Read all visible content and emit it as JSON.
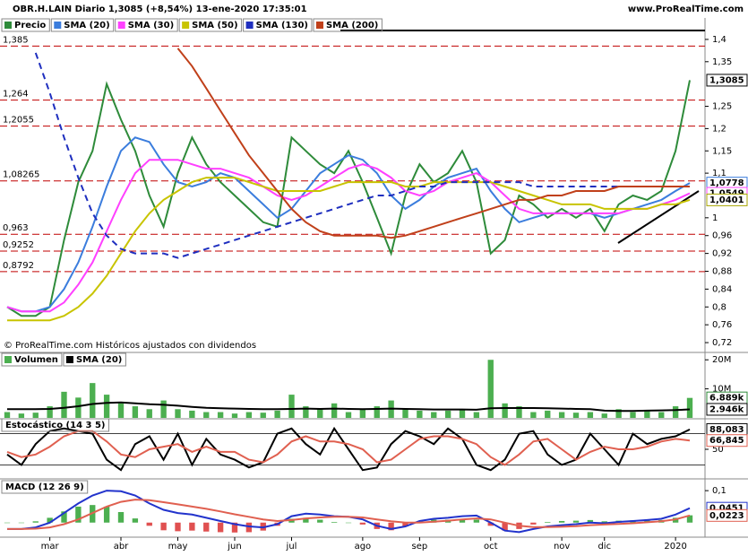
{
  "chart_data": [
    {
      "type": "line",
      "title": "OBR.H.LAIN Diario 1,3085 (+8,54%) 13-ene-2020 17:35:01",
      "source": "www.ProRealTime.com",
      "note": "© ProRealTime.com Históricos ajustados con dividendos",
      "categories": [
        null,
        null,
        null,
        "mar",
        null,
        null,
        null,
        null,
        "abr",
        null,
        null,
        null,
        "may",
        null,
        null,
        null,
        "jun",
        null,
        null,
        null,
        "jul",
        null,
        null,
        null,
        null,
        "ago",
        null,
        null,
        null,
        "sep",
        null,
        null,
        null,
        null,
        "oct",
        null,
        null,
        null,
        null,
        "nov",
        null,
        null,
        "dic",
        null,
        null,
        null,
        null,
        "2020",
        null
      ],
      "ylim": [
        0.7,
        1.42
      ],
      "yticks": [
        {
          "value": 1.4,
          "label": "1,4"
        },
        {
          "value": 1.35,
          "label": "1,35"
        },
        {
          "value": 1.25,
          "label": "1,25"
        },
        {
          "value": 1.2,
          "label": "1,2"
        },
        {
          "value": 1.15,
          "label": "1,15"
        },
        {
          "value": 1.1,
          "label": "1,1"
        },
        1,
        {
          "value": 0.96,
          "label": "0,96"
        },
        {
          "value": 0.92,
          "label": "0,92"
        },
        {
          "value": 0.88,
          "label": "0,88"
        },
        {
          "value": 0.84,
          "label": "0,84"
        },
        {
          "value": 0.8,
          "label": "0,8"
        },
        {
          "value": 0.76,
          "label": "0,76"
        },
        {
          "value": 0.72,
          "label": "0,72"
        }
      ],
      "levels": [
        {
          "value": 1.385,
          "label": "1,385"
        },
        {
          "value": 1.264,
          "label": "1,264"
        },
        {
          "value": 1.2055,
          "label": "1,2055"
        },
        {
          "value": 1.08265,
          "label": "1,08265"
        },
        {
          "value": 0.963,
          "label": "0,963"
        },
        {
          "value": 0.9252,
          "label": "0,9252"
        },
        {
          "value": 0.8792,
          "label": "0,8792"
        }
      ],
      "series": [
        {
          "name": "Precio",
          "color": "#2e8b3a",
          "values": [
            0.8,
            0.78,
            0.78,
            0.8,
            0.95,
            1.08,
            1.15,
            1.3,
            1.22,
            1.15,
            1.05,
            0.98,
            1.1,
            1.18,
            1.12,
            1.08,
            1.05,
            1.02,
            0.99,
            0.98,
            1.18,
            1.15,
            1.12,
            1.1,
            1.15,
            1.08,
            1.0,
            0.92,
            1.05,
            1.12,
            1.08,
            1.1,
            1.15,
            1.08,
            0.92,
            0.95,
            1.05,
            1.03,
            1.0,
            1.02,
            1.0,
            1.02,
            0.97,
            1.03,
            1.05,
            1.04,
            1.06,
            1.15,
            1.3085
          ]
        },
        {
          "name": "SMA (20)",
          "color": "#3b7ddd",
          "values": [
            0.8,
            0.79,
            0.79,
            0.8,
            0.84,
            0.9,
            0.98,
            1.07,
            1.15,
            1.18,
            1.17,
            1.12,
            1.08,
            1.07,
            1.08,
            1.1,
            1.09,
            1.06,
            1.03,
            1.0,
            1.02,
            1.06,
            1.1,
            1.12,
            1.14,
            1.13,
            1.1,
            1.05,
            1.02,
            1.04,
            1.07,
            1.09,
            1.1,
            1.11,
            1.06,
            1.02,
            0.99,
            1.0,
            1.01,
            1.01,
            1.01,
            1.01,
            1.0,
            1.01,
            1.02,
            1.03,
            1.04,
            1.06,
            1.0778
          ]
        },
        {
          "name": "SMA (30)",
          "color": "#ff40ff",
          "values": [
            0.8,
            0.79,
            0.79,
            0.79,
            0.81,
            0.85,
            0.9,
            0.97,
            1.04,
            1.1,
            1.13,
            1.13,
            1.13,
            1.12,
            1.11,
            1.11,
            1.1,
            1.09,
            1.07,
            1.05,
            1.04,
            1.05,
            1.07,
            1.09,
            1.11,
            1.12,
            1.11,
            1.09,
            1.06,
            1.05,
            1.06,
            1.08,
            1.09,
            1.1,
            1.08,
            1.05,
            1.02,
            1.01,
            1.01,
            1.01,
            1.01,
            1.01,
            1.01,
            1.01,
            1.02,
            1.02,
            1.03,
            1.04,
            1.0549
          ]
        },
        {
          "name": "SMA (50)",
          "color": "#c8c400",
          "values": [
            0.77,
            0.77,
            0.77,
            0.77,
            0.78,
            0.8,
            0.83,
            0.87,
            0.92,
            0.97,
            1.01,
            1.04,
            1.06,
            1.08,
            1.09,
            1.09,
            1.09,
            1.08,
            1.07,
            1.06,
            1.06,
            1.06,
            1.06,
            1.07,
            1.08,
            1.08,
            1.08,
            1.08,
            1.07,
            1.07,
            1.08,
            1.08,
            1.08,
            1.08,
            1.08,
            1.07,
            1.06,
            1.05,
            1.04,
            1.03,
            1.03,
            1.03,
            1.02,
            1.02,
            1.02,
            1.02,
            1.03,
            1.03,
            1.0401
          ]
        },
        {
          "name": "SMA (130)",
          "color": "#1f2fbf",
          "dashed": true,
          "values": [
            null,
            null,
            1.37,
            1.28,
            1.18,
            1.09,
            1.01,
            0.96,
            0.93,
            0.92,
            0.92,
            0.92,
            0.91,
            0.92,
            0.93,
            0.94,
            0.95,
            0.96,
            0.97,
            0.98,
            0.99,
            1.0,
            1.01,
            1.02,
            1.03,
            1.04,
            1.05,
            1.05,
            1.06,
            1.07,
            1.07,
            1.08,
            1.08,
            1.08,
            1.08,
            1.08,
            1.08,
            1.07,
            1.07,
            1.07,
            1.07,
            1.07,
            1.07,
            1.07,
            1.07,
            1.07,
            1.07,
            1.07,
            1.07
          ]
        },
        {
          "name": "SMA (200)",
          "color": "#c0401a",
          "values": [
            null,
            null,
            null,
            null,
            null,
            null,
            null,
            null,
            null,
            null,
            null,
            null,
            1.38,
            1.34,
            1.29,
            1.24,
            1.19,
            1.14,
            1.1,
            1.06,
            1.02,
            0.99,
            0.97,
            0.96,
            0.96,
            0.96,
            0.96,
            0.955,
            0.96,
            0.97,
            0.98,
            0.99,
            1.0,
            1.01,
            1.02,
            1.03,
            1.04,
            1.04,
            1.05,
            1.05,
            1.06,
            1.06,
            1.06,
            1.07,
            1.07,
            1.07,
            1.07,
            1.07,
            1.07
          ]
        }
      ],
      "tags": [
        {
          "value": 1.3085,
          "label": "1,3085",
          "color": "#000000"
        },
        {
          "value": 1.0778,
          "label": "1,0778",
          "color": "#3b7ddd"
        },
        {
          "value": 1.0549,
          "label": "1,0549",
          "color": "#ff40ff"
        },
        {
          "value": 1.0401,
          "label": "1,0401",
          "color": "#a8a400"
        }
      ]
    },
    {
      "type": "bar",
      "ylim": [
        0,
        21000000
      ],
      "yticks": [
        {
          "value": 20000000,
          "label": "20M"
        },
        {
          "value": 10000000,
          "label": "10M"
        }
      ],
      "series": [
        {
          "name": "Volumen",
          "color": "#4caf50",
          "values": [
            2000000,
            1500000,
            1800000,
            4000000,
            9000000,
            7000000,
            12000000,
            8000000,
            5000000,
            4000000,
            3000000,
            6000000,
            3000000,
            2500000,
            2000000,
            2000000,
            1500000,
            2000000,
            1800000,
            2500000,
            8000000,
            4000000,
            3000000,
            5000000,
            2000000,
            3000000,
            4000000,
            6000000,
            3000000,
            2500000,
            2000000,
            2500000,
            3000000,
            2000000,
            20000000,
            5000000,
            4000000,
            2000000,
            2500000,
            2000000,
            1800000,
            2000000,
            1500000,
            3000000,
            2000000,
            2500000,
            2000000,
            4000000,
            6889000
          ]
        },
        {
          "name": "SMA (20)",
          "type": "line",
          "color": "#000000",
          "values": [
            3000000,
            3000000,
            3000000,
            3100000,
            3500000,
            4000000,
            4800000,
            5200000,
            5300000,
            5000000,
            4700000,
            4500000,
            4200000,
            3800000,
            3500000,
            3300000,
            3200000,
            3100000,
            3000000,
            3000000,
            3100000,
            3200000,
            3100000,
            3200000,
            3100000,
            3000000,
            3100000,
            3200000,
            3100000,
            3000000,
            2900000,
            2900000,
            2900000,
            2800000,
            3300000,
            3400000,
            3400000,
            3400000,
            3300000,
            3200000,
            3100000,
            3000000,
            2500000,
            2400000,
            2400000,
            2500000,
            2600000,
            2700000,
            2946000
          ]
        }
      ],
      "tags": [
        {
          "value": 6889000,
          "label": "6.889k",
          "color": "#2e8b3a"
        },
        {
          "value": 2946000,
          "label": "2.946k",
          "color": "#000000"
        }
      ]
    },
    {
      "type": "line",
      "title": "Estocástico (14 3 5)",
      "ylim": [
        0,
        100
      ],
      "yticks": [
        50
      ],
      "levels": [
        80,
        20
      ],
      "series": [
        {
          "color": "#000000",
          "values": [
            40,
            20,
            60,
            85,
            90,
            85,
            80,
            30,
            10,
            60,
            75,
            30,
            80,
            20,
            70,
            40,
            30,
            15,
            25,
            80,
            90,
            60,
            40,
            90,
            50,
            10,
            15,
            60,
            85,
            75,
            60,
            90,
            70,
            20,
            10,
            30,
            80,
            85,
            40,
            20,
            30,
            80,
            50,
            20,
            80,
            60,
            70,
            75,
            88.083
          ]
        },
        {
          "color": "#e06050",
          "values": [
            45,
            35,
            40,
            55,
            75,
            85,
            85,
            65,
            40,
            35,
            50,
            55,
            60,
            45,
            55,
            45,
            45,
            30,
            25,
            40,
            65,
            75,
            65,
            65,
            60,
            50,
            25,
            30,
            50,
            70,
            75,
            75,
            70,
            60,
            35,
            20,
            40,
            65,
            70,
            50,
            30,
            45,
            55,
            50,
            50,
            55,
            65,
            70,
            66.845
          ]
        }
      ],
      "tags": [
        {
          "value": 88.083,
          "label": "88,083",
          "color": "#000000"
        },
        {
          "value": 66.845,
          "label": "66,845",
          "color": "#e06050"
        }
      ]
    },
    {
      "type": "line",
      "title": "MACD (12 26 9)",
      "ylim": [
        -0.04,
        0.12
      ],
      "yticks": [
        {
          "value": 0.1,
          "label": "0,1"
        }
      ],
      "series": [
        {
          "type": "bar",
          "color": "#4caf50",
          "negative_color": "#e05050",
          "values": [
            0,
            0,
            0.004,
            0.015,
            0.035,
            0.05,
            0.055,
            0.05,
            0.033,
            0.013,
            -0.01,
            -0.024,
            -0.027,
            -0.025,
            -0.028,
            -0.03,
            -0.031,
            -0.03,
            -0.025,
            -0.01,
            0.012,
            0.015,
            0.009,
            0.002,
            0,
            -0.006,
            -0.02,
            -0.024,
            -0.012,
            0.005,
            0.009,
            0.009,
            0.01,
            0.009,
            -0.01,
            -0.025,
            -0.02,
            -0.006,
            0.002,
            0.005,
            0.006,
            0.008,
            0.004,
            0.006,
            0.007,
            0.007,
            0.008,
            0.015,
            0.0228
          ]
        },
        {
          "color": "#2233cc",
          "values": [
            -0.02,
            -0.02,
            -0.015,
            0.0,
            0.03,
            0.06,
            0.085,
            0.1,
            0.098,
            0.085,
            0.06,
            0.04,
            0.03,
            0.025,
            0.015,
            0.005,
            -0.005,
            -0.012,
            -0.015,
            -0.005,
            0.02,
            0.028,
            0.025,
            0.02,
            0.018,
            0.01,
            -0.01,
            -0.02,
            -0.012,
            0.005,
            0.012,
            0.015,
            0.02,
            0.022,
            0.0,
            -0.025,
            -0.03,
            -0.02,
            -0.012,
            -0.008,
            -0.005,
            0.0,
            -0.002,
            0.002,
            0.005,
            0.008,
            0.012,
            0.025,
            0.0451
          ]
        },
        {
          "color": "#e06050",
          "values": [
            -0.02,
            -0.02,
            -0.019,
            -0.015,
            -0.005,
            0.01,
            0.03,
            0.05,
            0.065,
            0.072,
            0.07,
            0.064,
            0.057,
            0.05,
            0.043,
            0.035,
            0.026,
            0.018,
            0.01,
            0.005,
            0.008,
            0.013,
            0.016,
            0.018,
            0.018,
            0.016,
            0.01,
            0.004,
            0.0,
            0.0,
            0.003,
            0.006,
            0.01,
            0.013,
            0.01,
            0.0,
            -0.01,
            -0.014,
            -0.014,
            -0.013,
            -0.011,
            -0.008,
            -0.006,
            -0.004,
            -0.002,
            0.001,
            0.004,
            0.01,
            0.0223
          ]
        }
      ],
      "tags": [
        {
          "value": 0.0451,
          "label": "0,0451",
          "color": "#2233cc"
        },
        {
          "value": 0.0223,
          "label": "0,0223",
          "color": "#e06050"
        }
      ]
    }
  ]
}
